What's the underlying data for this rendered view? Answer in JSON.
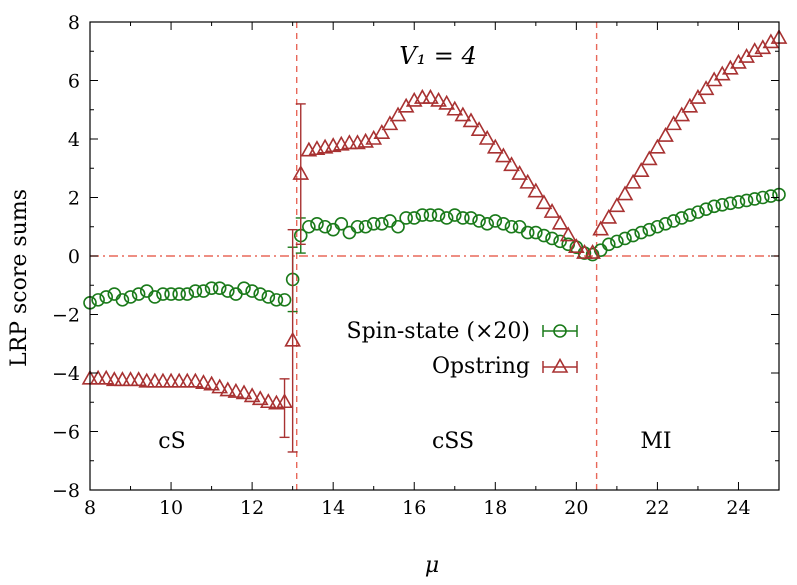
{
  "chart_data": {
    "type": "scatter",
    "xlabel": "μ",
    "ylabel": "LRP score sums",
    "xlim": [
      8,
      25
    ],
    "ylim": [
      -8,
      8
    ],
    "x_ticks": [
      "8",
      "10",
      "12",
      "14",
      "16",
      "18",
      "20",
      "22",
      "24"
    ],
    "y_ticks": [
      "−8",
      "−6",
      "−4",
      "−2",
      "0",
      "2",
      "4",
      "6",
      "8"
    ],
    "annotation": "V₁ = 4",
    "regions": [
      "cS",
      "cSS",
      "MI"
    ],
    "phase_boundaries": [
      13.1,
      20.5
    ],
    "zero_line": true,
    "grid": false,
    "legend_position": "center",
    "colors": {
      "spin": "#1a7a1a",
      "opstring": "#a83232",
      "guide": "#e8685a"
    },
    "series": [
      {
        "name": "Spin-state (×20)",
        "marker": "circle",
        "x": [
          8.0,
          8.2,
          8.4,
          8.6,
          8.8,
          9.0,
          9.2,
          9.4,
          9.6,
          9.8,
          10.0,
          10.2,
          10.4,
          10.6,
          10.8,
          11.0,
          11.2,
          11.4,
          11.6,
          11.8,
          12.0,
          12.2,
          12.4,
          12.6,
          12.8,
          13.0,
          13.2,
          13.4,
          13.6,
          13.8,
          14.0,
          14.2,
          14.4,
          14.6,
          14.8,
          15.0,
          15.2,
          15.4,
          15.6,
          15.8,
          16.0,
          16.2,
          16.4,
          16.6,
          16.8,
          17.0,
          17.2,
          17.4,
          17.6,
          17.8,
          18.0,
          18.2,
          18.4,
          18.6,
          18.8,
          19.0,
          19.2,
          19.4,
          19.6,
          19.8,
          20.0,
          20.2,
          20.4,
          20.6,
          20.8,
          21.0,
          21.2,
          21.4,
          21.6,
          21.8,
          22.0,
          22.2,
          22.4,
          22.6,
          22.8,
          23.0,
          23.2,
          23.4,
          23.6,
          23.8,
          24.0,
          24.2,
          24.4,
          24.6,
          24.8,
          25.0
        ],
        "y": [
          -1.6,
          -1.5,
          -1.4,
          -1.3,
          -1.5,
          -1.4,
          -1.3,
          -1.2,
          -1.4,
          -1.3,
          -1.3,
          -1.3,
          -1.3,
          -1.2,
          -1.2,
          -1.1,
          -1.1,
          -1.2,
          -1.3,
          -1.1,
          -1.2,
          -1.3,
          -1.4,
          -1.5,
          -1.5,
          -0.8,
          0.7,
          1.0,
          1.1,
          1.0,
          0.9,
          1.1,
          0.8,
          1.0,
          1.0,
          1.1,
          1.1,
          1.2,
          1.0,
          1.3,
          1.3,
          1.4,
          1.4,
          1.4,
          1.3,
          1.4,
          1.3,
          1.3,
          1.2,
          1.1,
          1.2,
          1.1,
          1.0,
          1.0,
          0.8,
          0.8,
          0.7,
          0.6,
          0.5,
          0.4,
          0.3,
          0.1,
          0.05,
          0.2,
          0.4,
          0.5,
          0.6,
          0.7,
          0.8,
          0.9,
          1.0,
          1.1,
          1.2,
          1.3,
          1.4,
          1.5,
          1.6,
          1.7,
          1.75,
          1.8,
          1.85,
          1.9,
          1.95,
          2.0,
          2.05,
          2.1
        ],
        "error_bars": [
          {
            "x": 13.0,
            "low": -1.9,
            "high": 0.3
          },
          {
            "x": 13.2,
            "low": 0.1,
            "high": 1.3
          }
        ]
      },
      {
        "name": "Opstring",
        "marker": "triangle",
        "x": [
          8.0,
          8.2,
          8.4,
          8.6,
          8.8,
          9.0,
          9.2,
          9.4,
          9.6,
          9.8,
          10.0,
          10.2,
          10.4,
          10.6,
          10.8,
          11.0,
          11.2,
          11.4,
          11.6,
          11.8,
          12.0,
          12.2,
          12.4,
          12.6,
          12.8,
          13.0,
          13.2,
          13.4,
          13.6,
          13.8,
          14.0,
          14.2,
          14.4,
          14.6,
          14.8,
          15.0,
          15.2,
          15.4,
          15.6,
          15.8,
          16.0,
          16.2,
          16.4,
          16.6,
          16.8,
          17.0,
          17.2,
          17.4,
          17.6,
          17.8,
          18.0,
          18.2,
          18.4,
          18.6,
          18.8,
          19.0,
          19.2,
          19.4,
          19.6,
          19.8,
          20.0,
          20.2,
          20.4,
          20.6,
          20.8,
          21.0,
          21.2,
          21.4,
          21.6,
          21.8,
          22.0,
          22.2,
          22.4,
          22.6,
          22.8,
          23.0,
          23.2,
          23.4,
          23.6,
          23.8,
          24.0,
          24.2,
          24.4,
          24.6,
          24.8,
          25.0
        ],
        "y": [
          -4.2,
          -4.2,
          -4.2,
          -4.25,
          -4.25,
          -4.25,
          -4.25,
          -4.3,
          -4.3,
          -4.3,
          -4.3,
          -4.3,
          -4.3,
          -4.3,
          -4.35,
          -4.4,
          -4.5,
          -4.6,
          -4.65,
          -4.7,
          -4.8,
          -4.9,
          -5.0,
          -5.05,
          -5.0,
          -2.9,
          2.8,
          3.6,
          3.65,
          3.7,
          3.75,
          3.8,
          3.85,
          3.85,
          3.9,
          4.0,
          4.2,
          4.5,
          4.8,
          5.1,
          5.3,
          5.4,
          5.4,
          5.3,
          5.2,
          5.0,
          4.8,
          4.6,
          4.3,
          4.0,
          3.7,
          3.4,
          3.1,
          2.8,
          2.5,
          2.2,
          1.8,
          1.5,
          1.1,
          0.7,
          0.3,
          0.1,
          0.1,
          0.9,
          1.3,
          1.7,
          2.1,
          2.5,
          2.9,
          3.3,
          3.7,
          4.1,
          4.5,
          4.8,
          5.1,
          5.4,
          5.7,
          6.0,
          6.2,
          6.4,
          6.6,
          6.8,
          7.0,
          7.1,
          7.3,
          7.45
        ],
        "error_bars": [
          {
            "x": 13.0,
            "low": -6.7,
            "high": 0.9
          },
          {
            "x": 13.2,
            "low": 0.4,
            "high": 5.2
          },
          {
            "x": 12.8,
            "low": -6.2,
            "high": -4.2
          }
        ]
      }
    ]
  }
}
